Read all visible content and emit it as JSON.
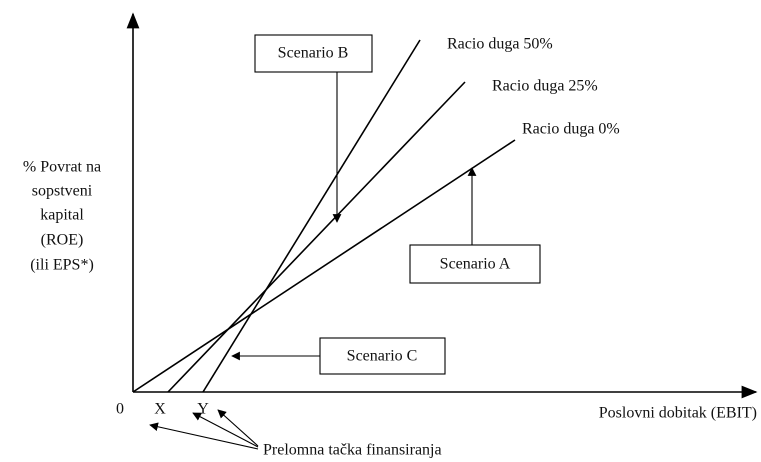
{
  "axes": {
    "y_label": [
      "% Povrat na",
      "sopstveni",
      "kapital",
      "(ROE)",
      "(ili EPS*)"
    ],
    "x_label": "Poslovni dobitak (EBIT)",
    "origin": "0",
    "x_marks": [
      "X",
      "Y"
    ]
  },
  "lines": [
    {
      "label": "Racio duga 50%"
    },
    {
      "label": "Racio duga 25%"
    },
    {
      "label": "Racio duga 0%"
    }
  ],
  "scenarios": [
    {
      "label": "Scenario B"
    },
    {
      "label": "Scenario A"
    },
    {
      "label": "Scenario C"
    }
  ],
  "note": "Prelomna tačka finansiranja"
}
